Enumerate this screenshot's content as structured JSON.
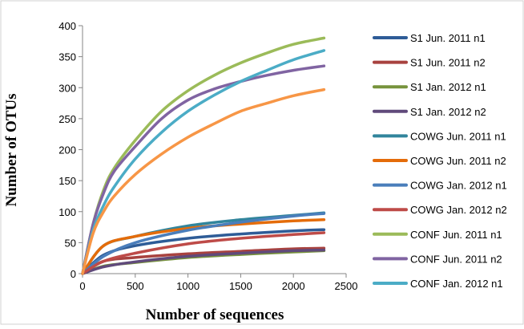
{
  "chart_data": {
    "type": "line",
    "title": "",
    "xlabel": "Number of sequences",
    "ylabel": "Number of OTUs",
    "xlim": [
      0,
      2500
    ],
    "ylim": [
      0,
      400
    ],
    "xticks": [
      0,
      500,
      1000,
      1500,
      2000,
      2500
    ],
    "yticks": [
      0,
      50,
      100,
      150,
      200,
      250,
      300,
      350,
      400
    ],
    "xtick_labels": [
      "0",
      "500",
      "1000",
      "1500",
      "2000",
      "2500"
    ],
    "ytick_labels": [
      "0",
      "50",
      "100",
      "150",
      "200",
      "250",
      "300",
      "350",
      "400"
    ],
    "grid": false,
    "legend_position": "right",
    "series": [
      {
        "name": "S1 Jun. 2011 n1",
        "color": "#2E5C97",
        "x": [
          0,
          200,
          500,
          1000,
          1500,
          2000,
          2290
        ],
        "y": [
          0,
          30,
          45,
          57,
          64,
          69,
          71
        ]
      },
      {
        "name": "S1 Jun. 2011 n2",
        "color": "#A8423F",
        "x": [
          0,
          200,
          500,
          1000,
          1500,
          2000,
          2290
        ],
        "y": [
          0,
          20,
          26,
          32,
          36,
          40,
          41
        ]
      },
      {
        "name": "S1 Jan. 2012 n1",
        "color": "#77933C",
        "x": [
          0,
          200,
          500,
          1000,
          1500,
          2000,
          2290
        ],
        "y": [
          0,
          12,
          18,
          26,
          31,
          35,
          37
        ]
      },
      {
        "name": "S1 Jan. 2012 n2",
        "color": "#604A7B",
        "x": [
          0,
          200,
          500,
          1000,
          1500,
          2000,
          2290
        ],
        "y": [
          0,
          11,
          19,
          28,
          33,
          37,
          38
        ]
      },
      {
        "name": "COWG Jun. 2011 n1",
        "color": "#31859C",
        "x": [
          0,
          200,
          500,
          1000,
          1500,
          2000,
          2290
        ],
        "y": [
          0,
          45,
          60,
          77,
          87,
          94,
          98
        ]
      },
      {
        "name": "COWG Jun. 2011 n2",
        "color": "#E46C0A",
        "x": [
          0,
          200,
          500,
          1000,
          1500,
          2000,
          2290
        ],
        "y": [
          0,
          45,
          60,
          73,
          80,
          85,
          87
        ]
      },
      {
        "name": "COWG Jan. 2012 n1",
        "color": "#4A7EBB",
        "x": [
          0,
          200,
          500,
          1000,
          1500,
          2000,
          2290
        ],
        "y": [
          0,
          28,
          50,
          70,
          83,
          93,
          97
        ]
      },
      {
        "name": "COWG Jan. 2012 n2",
        "color": "#BE4B48",
        "x": [
          0,
          200,
          500,
          1000,
          1500,
          2000,
          2290
        ],
        "y": [
          0,
          20,
          33,
          48,
          57,
          63,
          66
        ]
      },
      {
        "name": "CONF Jun. 2011 n1",
        "color": "#9BBB59",
        "x": [
          0,
          100,
          200,
          300,
          500,
          750,
          1000,
          1250,
          1500,
          1750,
          2000,
          2290
        ],
        "y": [
          0,
          80,
          135,
          170,
          215,
          262,
          295,
          320,
          340,
          356,
          370,
          380
        ]
      },
      {
        "name": "CONF Jun. 2011 n2",
        "color": "#8064A2",
        "x": [
          0,
          100,
          200,
          300,
          500,
          750,
          1000,
          1250,
          1500,
          1750,
          2000,
          2290
        ],
        "y": [
          0,
          80,
          130,
          165,
          205,
          250,
          280,
          298,
          310,
          320,
          328,
          335
        ]
      },
      {
        "name": "CONF Jan. 2012 n1",
        "color": "#4BACC6",
        "x": [
          0,
          100,
          200,
          300,
          500,
          750,
          1000,
          1250,
          1500,
          1750,
          2000,
          2290
        ],
        "y": [
          0,
          70,
          110,
          140,
          185,
          228,
          262,
          288,
          310,
          328,
          345,
          360
        ]
      },
      {
        "name": "",
        "color": "#F79646",
        "legend": false,
        "x": [
          0,
          100,
          200,
          300,
          500,
          750,
          1000,
          1250,
          1500,
          1750,
          2000,
          2290
        ],
        "y": [
          0,
          65,
          100,
          125,
          160,
          193,
          220,
          242,
          262,
          275,
          287,
          297
        ]
      }
    ]
  }
}
